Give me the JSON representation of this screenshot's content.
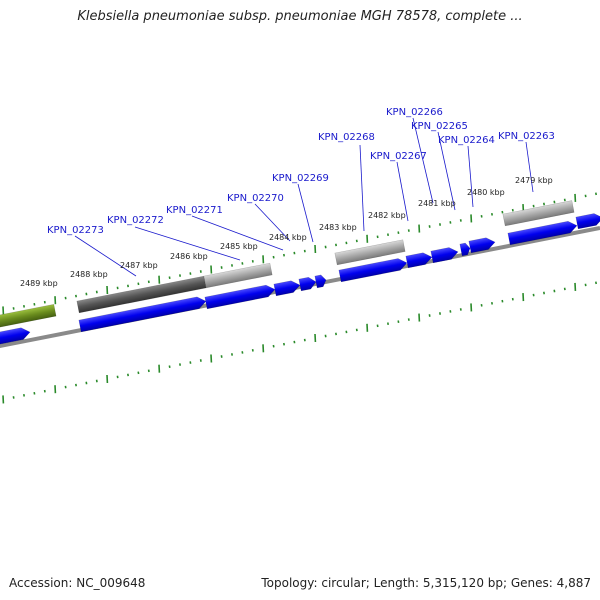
{
  "title": "Klebsiella pneumoniae subsp. pneumoniae MGH 78578, complete ...",
  "footer": {
    "accession": "Accession: NC_009648",
    "summary": "Topology: circular; Length: 5,315,120 bp; Genes: 4,887"
  },
  "kbp_labels": [
    "2489 kbp",
    "2488 kbp",
    "2487 kbp",
    "2486 kbp",
    "2485 kbp",
    "2484 kbp",
    "2483 kbp",
    "2482 kbp",
    "2481 kbp",
    "2480 kbp",
    "2479 kbp"
  ],
  "gene_labels": [
    "KPN_02273",
    "KPN_02272",
    "KPN_02271",
    "KPN_02270",
    "KPN_02269",
    "KPN_02268",
    "KPN_02267",
    "KPN_02266",
    "KPN_02265",
    "KPN_02264",
    "KPN_02263"
  ],
  "colors": {
    "cds": "#0000ee",
    "gene_gray": "#9a9a9a",
    "gene_dark": "#555555",
    "gene_olive": "#6a8c1e",
    "tick_green": "#2a8a2a",
    "label_blue": "#1a1acc"
  }
}
